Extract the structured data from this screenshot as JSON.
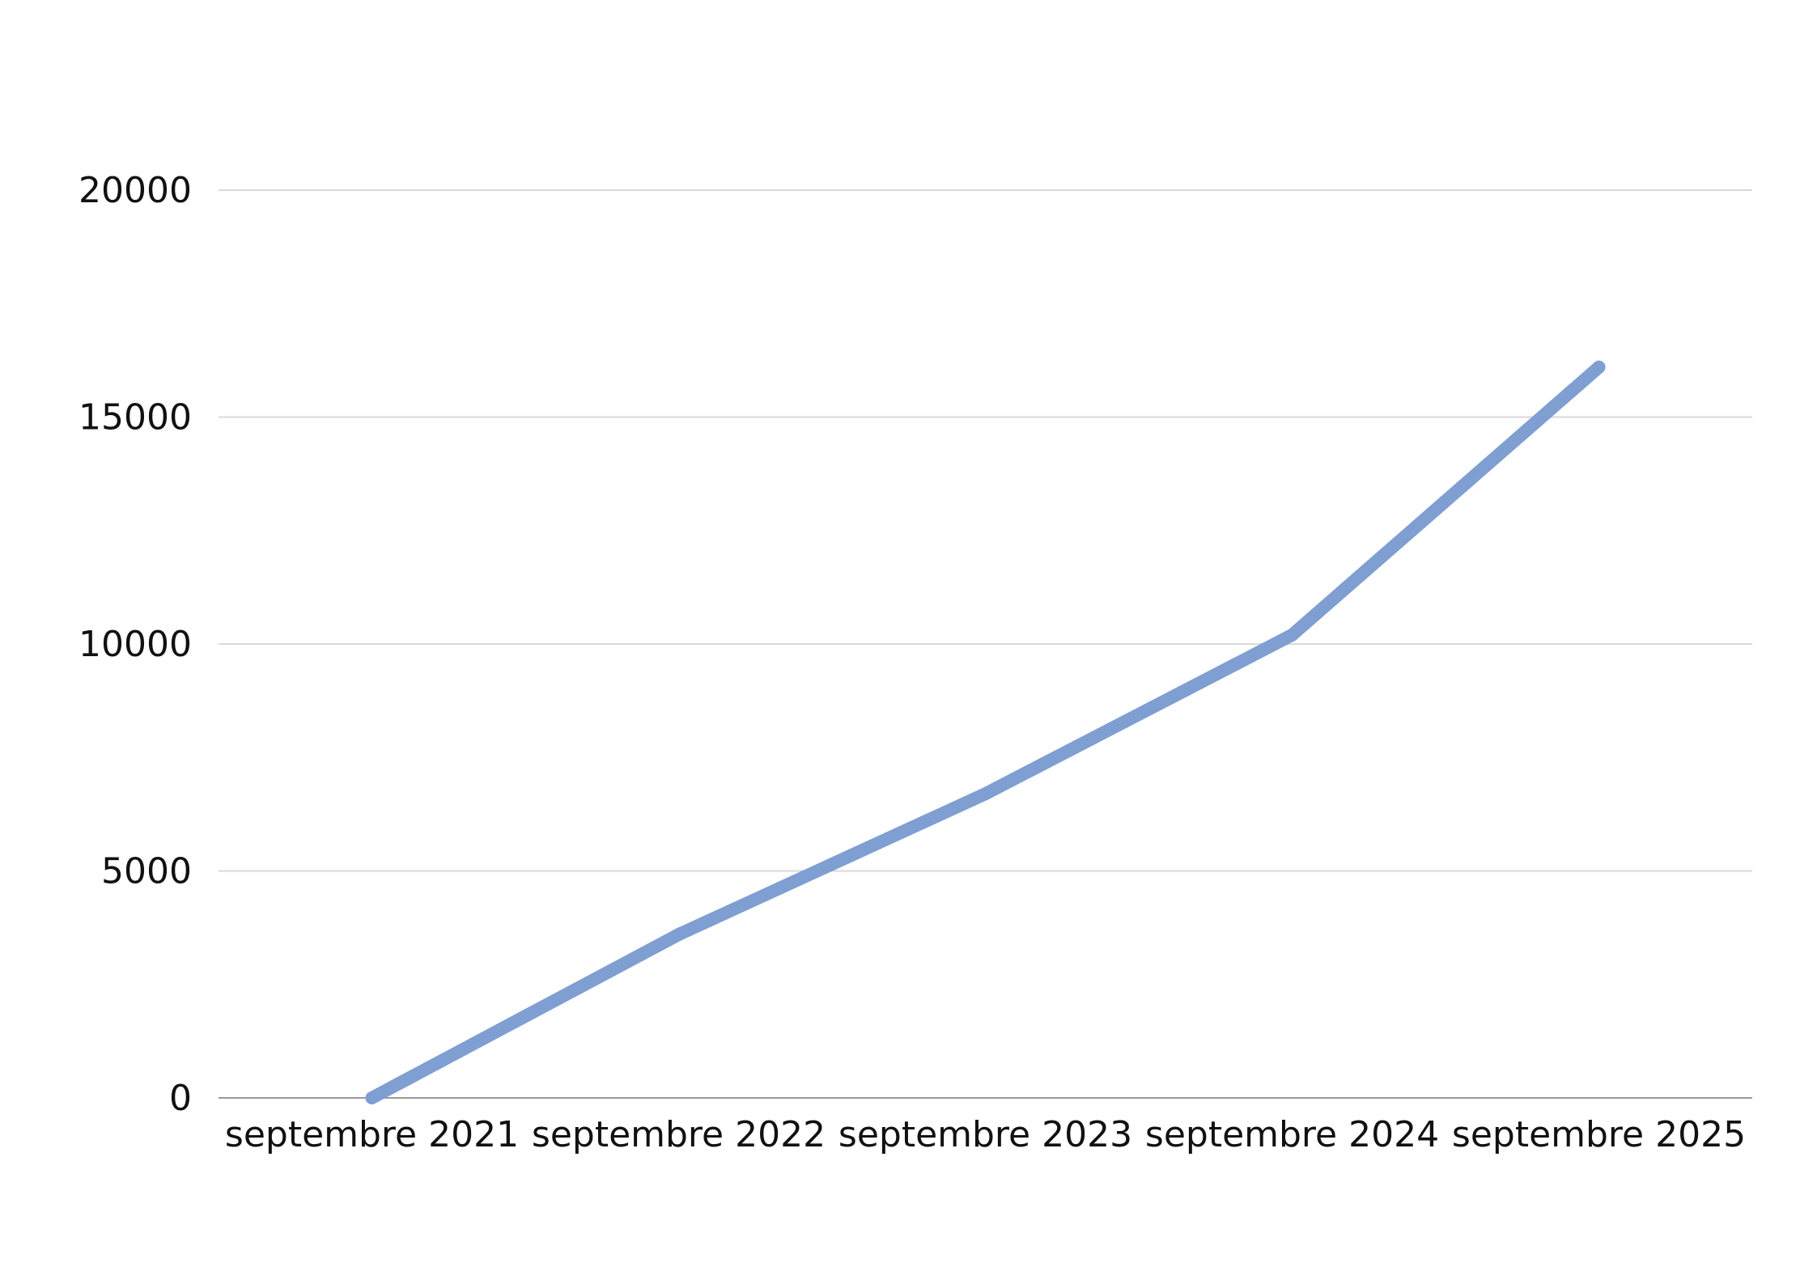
{
  "chart_data": {
    "type": "line",
    "title": "",
    "xlabel": "",
    "ylabel": "",
    "categories": [
      "septembre 2021",
      "septembre 2022",
      "septembre 2023",
      "septembre 2024",
      "septembre 2025"
    ],
    "series": [
      {
        "values": [
          0,
          3600,
          6700,
          10200,
          16100
        ],
        "color": "#7f9fd3"
      }
    ],
    "ylim": [
      0,
      20000
    ],
    "yticks": [
      0,
      5000,
      10000,
      15000,
      20000
    ],
    "grid": true,
    "legend": "none"
  }
}
